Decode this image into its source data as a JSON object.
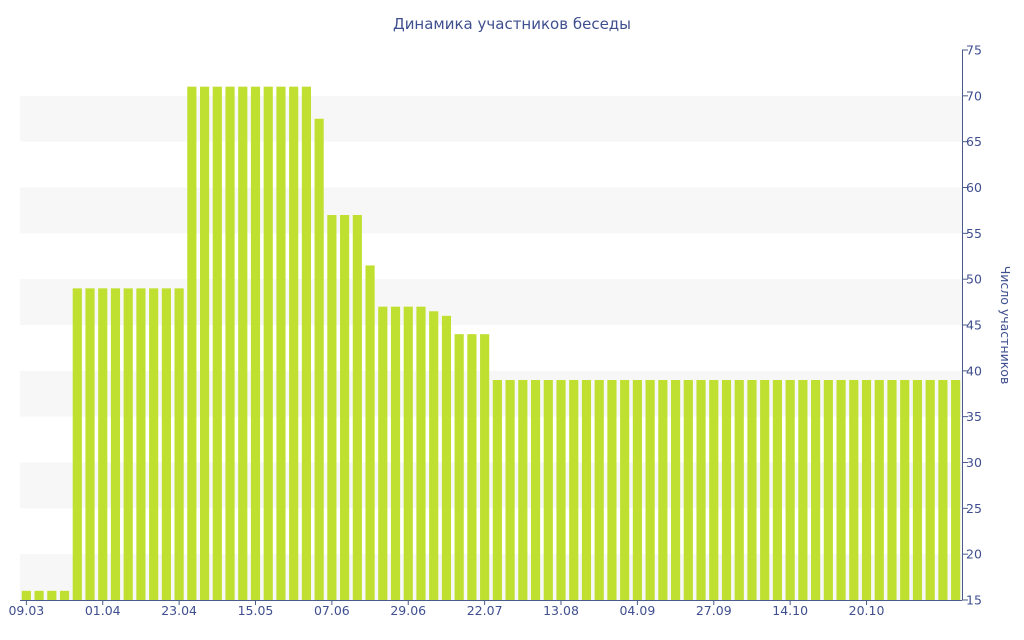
{
  "chart_data": {
    "type": "bar",
    "title": "Динамика участников беседы",
    "ylabel": "Число участников",
    "xlabel": "",
    "ylim": [
      15,
      75
    ],
    "y_ticks": [
      15,
      20,
      25,
      30,
      35,
      40,
      45,
      50,
      55,
      60,
      65,
      70,
      75
    ],
    "y_axis_side": "right",
    "grid": "alternating horizontal bands",
    "x_tick_labels": [
      {
        "label": "09.03",
        "index": 0
      },
      {
        "label": "01.04",
        "index": 6
      },
      {
        "label": "23.04",
        "index": 12
      },
      {
        "label": "15.05",
        "index": 18
      },
      {
        "label": "07.06",
        "index": 24
      },
      {
        "label": "29.06",
        "index": 30
      },
      {
        "label": "22.07",
        "index": 36
      },
      {
        "label": "13.08",
        "index": 42
      },
      {
        "label": "04.09",
        "index": 48
      },
      {
        "label": "27.09",
        "index": 54
      },
      {
        "label": "14.10",
        "index": 60
      },
      {
        "label": "20.10",
        "index": 66
      }
    ],
    "values": [
      16,
      16,
      16,
      16,
      49,
      49,
      49,
      49,
      49,
      49,
      49,
      49,
      49,
      71,
      71,
      71,
      71,
      71,
      71,
      71,
      71,
      71,
      71,
      67.5,
      57,
      57,
      57,
      51.5,
      47,
      47,
      47,
      47,
      46.5,
      46,
      44,
      44,
      44,
      39,
      39,
      39,
      39,
      39,
      39,
      39,
      39,
      39,
      39,
      39,
      39,
      39,
      39,
      39,
      39,
      39,
      39,
      39,
      39,
      39,
      39,
      39,
      39,
      39,
      39,
      39,
      39,
      39,
      39,
      39,
      39,
      39,
      39,
      39,
      39,
      39
    ],
    "colors": {
      "bar": "#bfe030",
      "band": "#f7f7f7",
      "text": "#3f4f8f",
      "axis": "#4a5a8a"
    }
  }
}
